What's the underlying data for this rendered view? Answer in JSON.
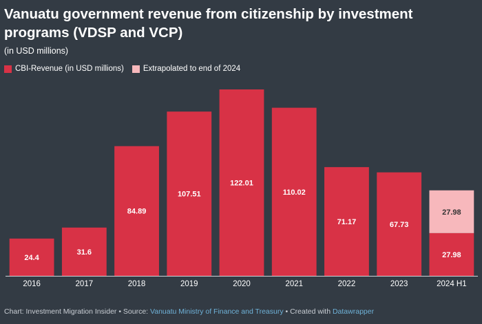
{
  "chart_data": {
    "type": "bar",
    "title": "Vanuatu government revenue from citizenship by investment programs (VDSP and VCP)",
    "subtitle": "(in USD millions)",
    "categories": [
      "2016",
      "2017",
      "2018",
      "2019",
      "2020",
      "2021",
      "2022",
      "2023",
      "2024 H1"
    ],
    "series": [
      {
        "name": "CBI-Revenue (in USD millions)",
        "color": "#d83246",
        "values": [
          24.4,
          31.6,
          84.89,
          107.51,
          122.01,
          110.02,
          71.17,
          67.73,
          27.98
        ],
        "labels": [
          "24.4",
          "31.6",
          "84.89",
          "107.51",
          "122.01",
          "110.02",
          "71.17",
          "67.73",
          "27.98"
        ]
      },
      {
        "name": "Extrapolated to end of 2024",
        "color": "#f7b8bc",
        "values": [
          null,
          null,
          null,
          null,
          null,
          null,
          null,
          null,
          27.98
        ],
        "labels": [
          "",
          "",
          "",
          "",
          "",
          "",
          "",
          "",
          "27.98"
        ]
      }
    ],
    "stacked": true,
    "ylim": [
      0,
      122.01
    ],
    "xlabel": "",
    "ylabel": ""
  },
  "footer": {
    "prefix": "Chart: Investment Migration Insider • Source: ",
    "source": "Vanuatu Ministry of Finance and Treasury",
    "middle": " • Created with ",
    "tool": "Datawrapper"
  }
}
